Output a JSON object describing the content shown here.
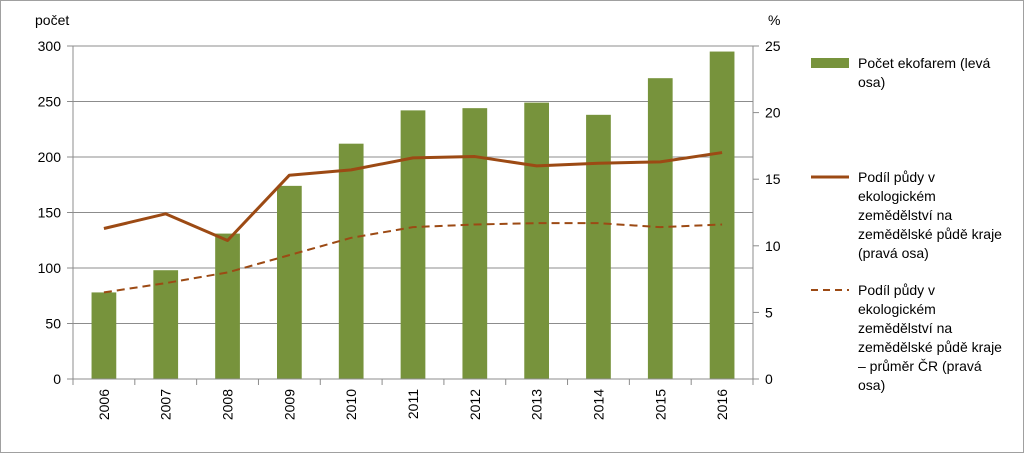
{
  "chart_data": {
    "type": "bar+line",
    "categories": [
      "2006",
      "2007",
      "2008",
      "2009",
      "2010",
      "2011",
      "2012",
      "2013",
      "2014",
      "2015",
      "2016"
    ],
    "left_axis": {
      "title": "počet",
      "ylim": [
        0,
        300
      ],
      "ticks": [
        "0",
        "50",
        "100",
        "150",
        "200",
        "250",
        "300"
      ]
    },
    "right_axis": {
      "title": "%",
      "ylim": [
        0,
        25
      ],
      "ticks": [
        "0",
        "5",
        "10",
        "15",
        "20",
        "25"
      ]
    },
    "grid": "horizontal",
    "legend_position": "right",
    "series": [
      {
        "name": "Počet ekofarem (levá osa)",
        "type": "bar",
        "axis": "left",
        "color": "#77933c",
        "values": [
          78,
          98,
          131,
          174,
          212,
          242,
          244,
          249,
          238,
          271,
          295
        ],
        "legend_lines": [
          "Počet ekofarem (levá",
          "osa)"
        ]
      },
      {
        "name": "Podíl půdy v ekologickém zemědělství na zemědělské půdě kraje (pravá osa)",
        "type": "line",
        "style": "solid",
        "axis": "right",
        "color": "#9c4a14",
        "values": [
          11.3,
          12.4,
          10.4,
          15.3,
          15.7,
          16.6,
          16.7,
          16.0,
          16.2,
          16.3,
          17.0
        ],
        "legend_lines": [
          "Podíl půdy v",
          "ekologickém",
          "zemědělství na",
          "zemědělské půdě kraje",
          "(pravá osa)"
        ]
      },
      {
        "name": "Podíl půdy v ekologickém zemědělství na zemědělské půdě kraje – průměr ČR (pravá osa)",
        "type": "line",
        "style": "dashed",
        "axis": "right",
        "color": "#9c4a14",
        "values": [
          6.5,
          7.2,
          8.0,
          9.3,
          10.6,
          11.4,
          11.6,
          11.7,
          11.7,
          11.4,
          11.6
        ],
        "legend_lines": [
          "Podíl půdy v",
          "ekologickém",
          "zemědělství na",
          "zemědělské půdě kraje",
          "– průměr ČR (pravá",
          "osa)"
        ]
      }
    ]
  }
}
